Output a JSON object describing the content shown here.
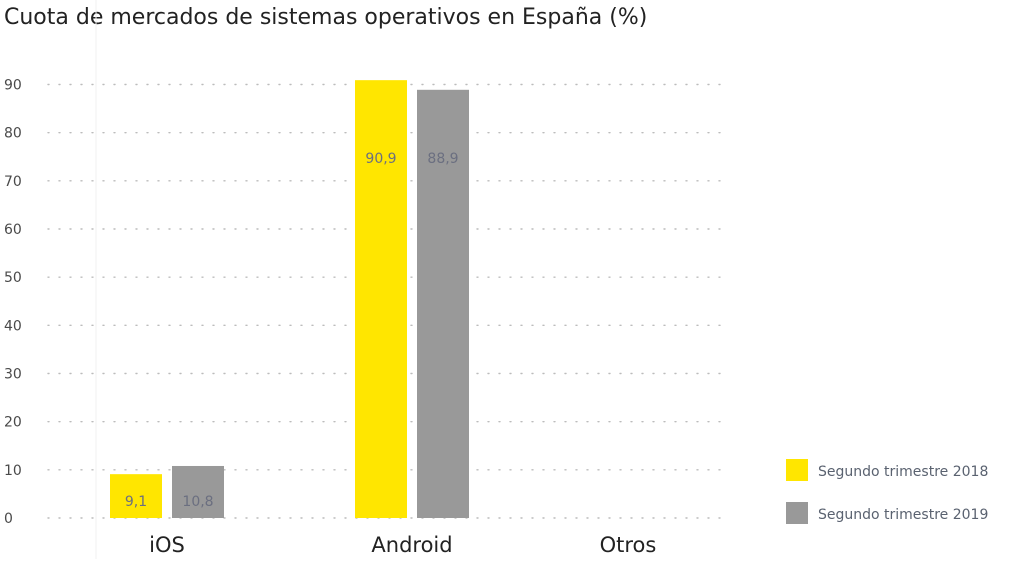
{
  "chart_data": {
    "type": "bar",
    "title": "Cuota de mercados de sistemas operativos en España (%)",
    "xlabel": "",
    "ylabel": "",
    "categories": [
      "iOS",
      "Android",
      "Otros"
    ],
    "series": [
      {
        "name": "Segundo trimestre 2018",
        "color": "#FFE600",
        "values": [
          9.1,
          90.9,
          null
        ],
        "labels": [
          "9,1",
          "90,9",
          null
        ]
      },
      {
        "name": "Segundo trimestre 2019",
        "color": "#999999",
        "values": [
          10.8,
          88.9,
          null
        ],
        "labels": [
          "10,8",
          "88,9",
          null
        ]
      }
    ],
    "ylim": [
      0,
      95
    ],
    "yticks": [
      0,
      10,
      20,
      30,
      40,
      50,
      60,
      70,
      80,
      90
    ],
    "grid": true,
    "legend_position": "bottom-right"
  }
}
